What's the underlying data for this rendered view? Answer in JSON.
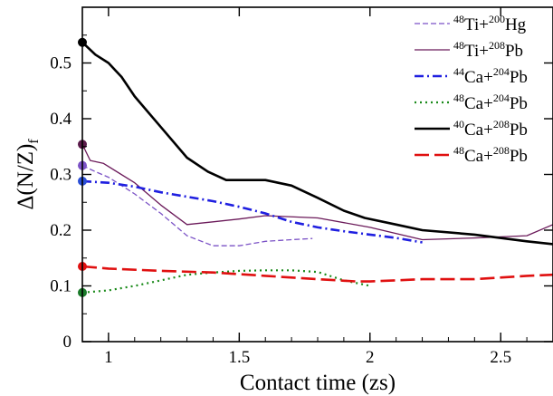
{
  "chart_data": {
    "type": "line",
    "title": "",
    "xlabel": "Contact time (zs)",
    "ylabel": {
      "main": "Δ(N/Z)",
      "subscript": "f"
    },
    "xlim": [
      0.9,
      2.7
    ],
    "ylim": [
      0,
      0.6
    ],
    "xticks": [
      1,
      1.5,
      2,
      2.5
    ],
    "xtick_labels": [
      "1",
      "1.5",
      "2",
      "2.5"
    ],
    "yticks": [
      0,
      0.1,
      0.2,
      0.3,
      0.4,
      0.5
    ],
    "ytick_labels": [
      "0",
      "0.1",
      "0.2",
      "0.3",
      "0.4",
      "0.5"
    ],
    "grid": false,
    "legend_position": "top-right",
    "series": [
      {
        "name": "48Ti+200Hg",
        "legend": {
          "a1": "48",
          "e1": "Ti+",
          "a2": "200",
          "e2": "Hg"
        },
        "color": "#7b52c6",
        "dash": "dashed-thin",
        "marker_color": "#7b52c6",
        "x": [
          0.9,
          0.95,
          1.0,
          1.1,
          1.2,
          1.3,
          1.4,
          1.5,
          1.6,
          1.7,
          1.78
        ],
        "y": [
          0.316,
          0.305,
          0.295,
          0.265,
          0.23,
          0.19,
          0.172,
          0.172,
          0.18,
          0.183,
          0.185
        ]
      },
      {
        "name": "48Ti+208Pb",
        "legend": {
          "a1": "48",
          "e1": "Ti+",
          "a2": "208",
          "e2": "Pb"
        },
        "color": "#6b1a5a",
        "dash": "solid-thin",
        "marker_color": "#5a1a4a",
        "x": [
          0.9,
          0.93,
          0.98,
          1.1,
          1.2,
          1.3,
          1.4,
          1.5,
          1.6,
          1.8,
          2.0,
          2.2,
          2.4,
          2.6,
          2.7
        ],
        "y": [
          0.354,
          0.325,
          0.32,
          0.285,
          0.245,
          0.21,
          0.215,
          0.22,
          0.226,
          0.222,
          0.205,
          0.183,
          0.186,
          0.19,
          0.21
        ]
      },
      {
        "name": "44Ca+204Pb",
        "legend": {
          "a1": "44",
          "e1": "Ca+",
          "a2": "204",
          "e2": "Pb"
        },
        "color": "#1f1fe0",
        "dash": "dash-dot",
        "marker_color": "#2b4fd6",
        "x": [
          0.9,
          1.0,
          1.1,
          1.2,
          1.3,
          1.4,
          1.5,
          1.6,
          1.7,
          1.8,
          1.9,
          2.0,
          2.1,
          2.2
        ],
        "y": [
          0.288,
          0.285,
          0.278,
          0.268,
          0.26,
          0.252,
          0.242,
          0.23,
          0.215,
          0.205,
          0.198,
          0.192,
          0.186,
          0.178
        ]
      },
      {
        "name": "48Ca+204Pb",
        "legend": {
          "a1": "48",
          "e1": "Ca+",
          "a2": "204",
          "e2": "Pb"
        },
        "color": "#1a8a1a",
        "dash": "dotted",
        "marker_color": "#1a7a2a",
        "x": [
          0.9,
          1.0,
          1.1,
          1.2,
          1.3,
          1.4,
          1.5,
          1.6,
          1.7,
          1.8,
          1.9,
          2.0
        ],
        "y": [
          0.088,
          0.092,
          0.1,
          0.11,
          0.12,
          0.124,
          0.127,
          0.128,
          0.128,
          0.125,
          0.11,
          0.1
        ]
      },
      {
        "name": "40Ca+208Pb",
        "legend": {
          "a1": "40",
          "e1": "Ca+",
          "a2": "208",
          "e2": "Pb"
        },
        "color": "#000000",
        "dash": "solid-thick",
        "marker_color": "#000000",
        "x": [
          0.9,
          0.95,
          1.0,
          1.05,
          1.1,
          1.2,
          1.3,
          1.38,
          1.45,
          1.5,
          1.6,
          1.7,
          1.8,
          1.9,
          1.98,
          2.1,
          2.2,
          2.4,
          2.6,
          2.7
        ],
        "y": [
          0.537,
          0.515,
          0.5,
          0.475,
          0.44,
          0.385,
          0.33,
          0.305,
          0.29,
          0.29,
          0.29,
          0.28,
          0.258,
          0.235,
          0.222,
          0.21,
          0.2,
          0.192,
          0.18,
          0.175
        ]
      },
      {
        "name": "48Ca+208Pb",
        "legend": {
          "a1": "48",
          "e1": "Ca+",
          "a2": "208",
          "e2": "Pb"
        },
        "color": "#e01010",
        "dash": "long-dash",
        "marker_color": "#e01010",
        "x": [
          0.9,
          1.0,
          1.2,
          1.4,
          1.6,
          1.8,
          1.95,
          2.0,
          2.2,
          2.4,
          2.6,
          2.7
        ],
        "y": [
          0.135,
          0.131,
          0.127,
          0.124,
          0.118,
          0.112,
          0.108,
          0.108,
          0.112,
          0.112,
          0.118,
          0.12
        ]
      }
    ]
  }
}
